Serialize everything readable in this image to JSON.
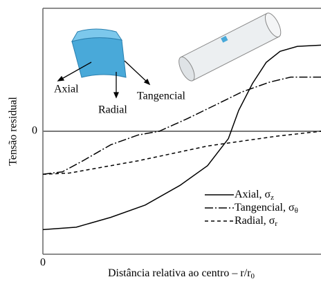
{
  "chart_data": {
    "type": "line",
    "ylabel": "Tensão residual",
    "xlabel": "Distância relativa ao centro – r/r",
    "xlabel_sub": "0",
    "xlim": [
      0,
      1
    ],
    "ylim": [
      -1,
      1
    ],
    "xticks": [
      0
    ],
    "yticks": [
      0
    ],
    "zero_line": true,
    "annotations": [
      "Axial",
      "Radial",
      "Tangencial"
    ],
    "series": [
      {
        "name": "Axial, σ",
        "name_sub": "z",
        "color": "#000000",
        "style": "solid",
        "x": [
          0,
          0.12,
          0.244,
          0.368,
          0.493,
          0.592,
          0.667,
          0.704,
          0.754,
          0.803,
          0.853,
          0.915,
          1
        ],
        "values": [
          -0.8,
          -0.78,
          -0.7,
          -0.6,
          -0.44,
          -0.28,
          -0.06,
          0.17,
          0.39,
          0.56,
          0.65,
          0.69,
          0.7
        ]
      },
      {
        "name": "Tangencial, σ",
        "name_sub": "θ",
        "color": "#000000",
        "style": "dashdot",
        "x": [
          0,
          0.07,
          0.144,
          0.244,
          0.343,
          0.418,
          0.517,
          0.617,
          0.716,
          0.816,
          0.891,
          1
        ],
        "values": [
          -0.35,
          -0.33,
          -0.24,
          -0.11,
          -0.03,
          0,
          0.1,
          0.21,
          0.32,
          0.4,
          0.44,
          0.44
        ]
      },
      {
        "name": "Radial, σ",
        "name_sub": "r",
        "color": "#000000",
        "style": "dashed",
        "x": [
          0,
          0.095,
          0.219,
          0.343,
          0.468,
          0.592,
          0.716,
          0.841,
          1
        ],
        "values": [
          -0.35,
          -0.34,
          -0.29,
          -0.24,
          -0.18,
          -0.12,
          -0.08,
          -0.04,
          0
        ]
      }
    ]
  }
}
